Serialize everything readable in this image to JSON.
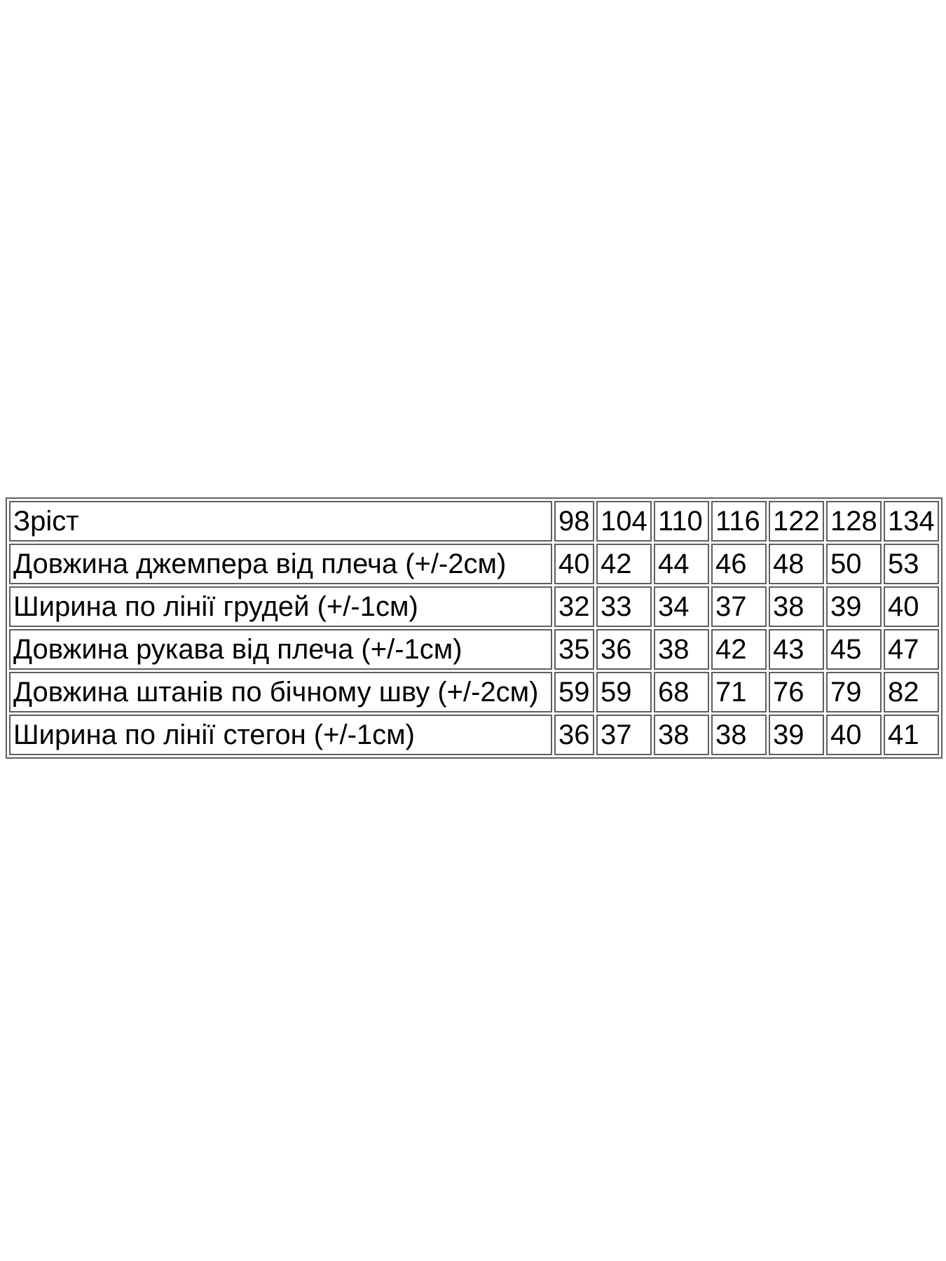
{
  "page": {
    "background_color": "#ffffff"
  },
  "size_table": {
    "border_color": "#5f5f5f",
    "text_color": "#000000",
    "header": {
      "label": "Зріст",
      "sizes": [
        "98",
        "104",
        "110",
        "116",
        "122",
        "128",
        "134"
      ]
    },
    "rows": [
      {
        "label": "Довжина джемпера від плеча (+/-2см)",
        "values": [
          "40",
          "42",
          "44",
          "46",
          "48",
          "50",
          "53"
        ]
      },
      {
        "label": "Ширина по лінії грудей (+/-1см)",
        "values": [
          "32",
          "33",
          "34",
          "37",
          "38",
          "39",
          "40"
        ]
      },
      {
        "label": "Довжина рукава від плеча (+/-1см)",
        "values": [
          "35",
          "36",
          "38",
          "42",
          "43",
          "45",
          "47"
        ]
      },
      {
        "label": "Довжина штанів по бічному шву (+/-2см)",
        "values": [
          "59",
          "59",
          "68",
          "71",
          "76",
          "79",
          "82"
        ]
      },
      {
        "label": "Ширина по лінії стегон (+/-1см)",
        "values": [
          "36",
          "37",
          "38",
          "38",
          "39",
          "40",
          "41"
        ]
      }
    ]
  }
}
